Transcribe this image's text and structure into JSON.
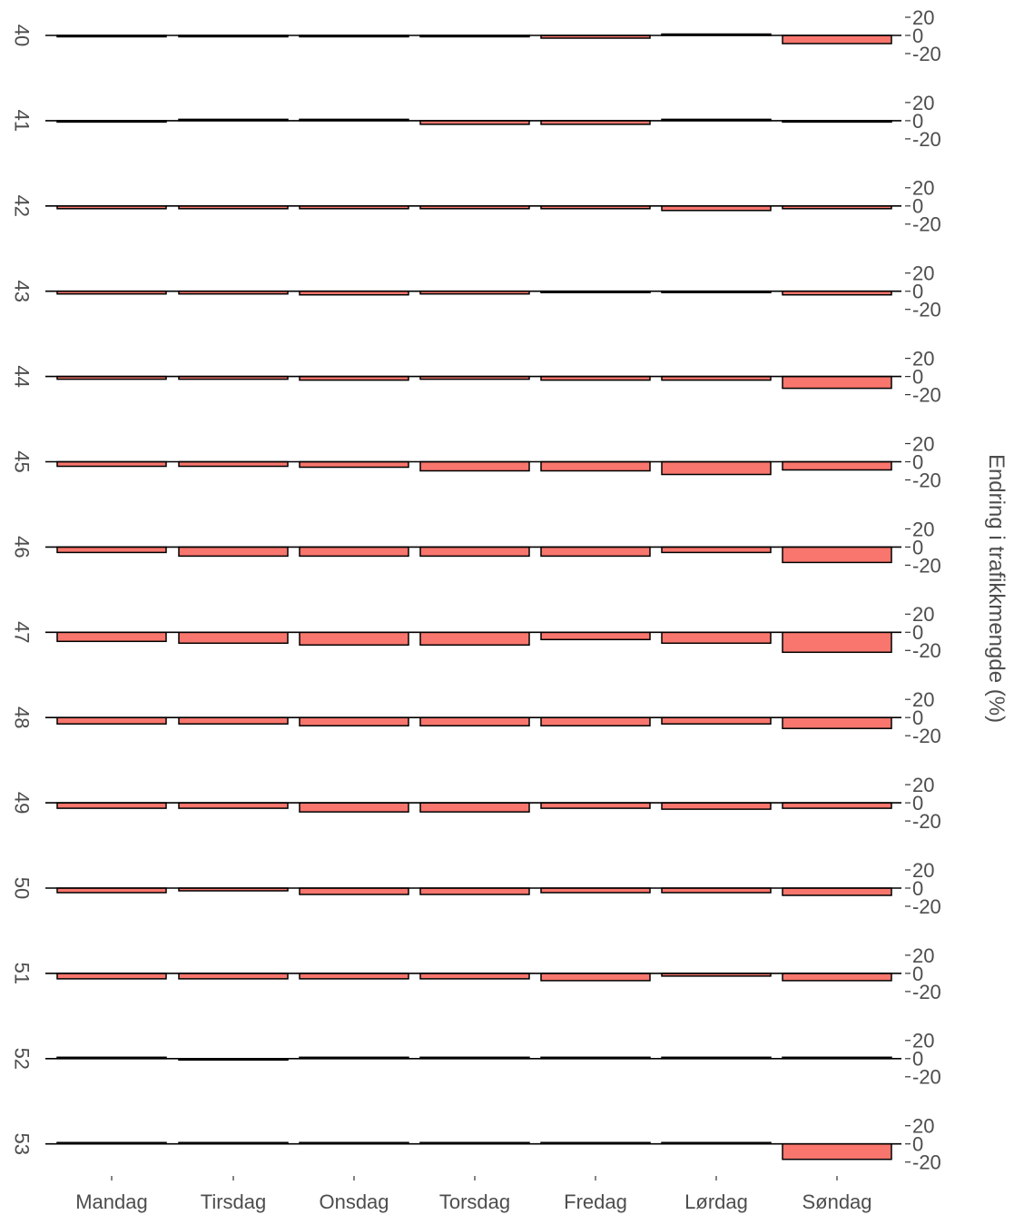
{
  "chart_data": {
    "type": "bar",
    "layout": "small-multiples",
    "ylabel": "Endring i trafikkmengde (%)",
    "ylim": [
      -20,
      20
    ],
    "y_ticks": [
      "20",
      "0",
      "-20"
    ],
    "grid": false,
    "fill_color": "#f8766d",
    "categories": [
      "Mandag",
      "Tirsdag",
      "Onsdag",
      "Torsdag",
      "Fredag",
      "Lørdag",
      "Søndag"
    ],
    "series": [
      {
        "name": "40",
        "values": [
          -0.5,
          -0.5,
          -0.5,
          -0.5,
          -3,
          0,
          -9
        ]
      },
      {
        "name": "41",
        "values": [
          -0.3,
          0,
          0,
          -4,
          -4,
          0,
          -0.3
        ]
      },
      {
        "name": "42",
        "values": [
          -3,
          -3,
          -3,
          -3,
          -3,
          -5,
          -3
        ]
      },
      {
        "name": "43",
        "values": [
          -3,
          -3,
          -4,
          -3,
          -0.5,
          -0.5,
          -4
        ]
      },
      {
        "name": "44",
        "values": [
          -3,
          -3,
          -4,
          -3,
          -4,
          -4,
          -13
        ]
      },
      {
        "name": "45",
        "values": [
          -5,
          -5,
          -6,
          -10,
          -10,
          -14,
          -9
        ]
      },
      {
        "name": "46",
        "values": [
          -6,
          -10,
          -10,
          -10,
          -10,
          -6,
          -17
        ]
      },
      {
        "name": "47",
        "values": [
          -10,
          -12,
          -14,
          -14,
          -8,
          -12,
          -22
        ]
      },
      {
        "name": "48",
        "values": [
          -7,
          -7,
          -9,
          -9,
          -9,
          -7,
          -12
        ]
      },
      {
        "name": "49",
        "values": [
          -6,
          -6,
          -10,
          -10,
          -6,
          -7,
          -6
        ]
      },
      {
        "name": "50",
        "values": [
          -5,
          -3,
          -7,
          -7,
          -5,
          -5,
          -8
        ]
      },
      {
        "name": "51",
        "values": [
          -6,
          -6,
          -6,
          -6,
          -8,
          -3,
          -8
        ]
      },
      {
        "name": "52",
        "values": [
          0,
          -1,
          0,
          0,
          0,
          0,
          0
        ]
      },
      {
        "name": "53",
        "values": [
          0,
          0,
          0,
          0,
          0,
          0,
          -17
        ]
      }
    ]
  }
}
